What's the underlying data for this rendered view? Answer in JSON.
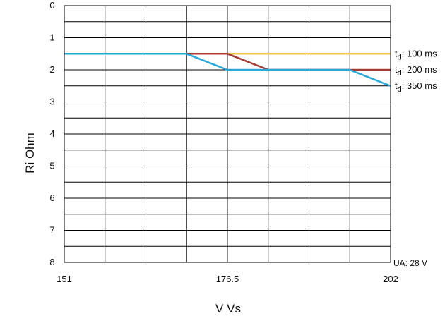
{
  "chart_data": {
    "type": "line",
    "xlabel": "V Vs",
    "ylabel": "Ri Ohm",
    "xlim": [
      151,
      202
    ],
    "ylim": [
      0,
      8
    ],
    "y_inverted": true,
    "grid": true,
    "x_ticks": [
      "151",
      "176.5",
      "202"
    ],
    "y_ticks": [
      "0",
      "1",
      "2",
      "3",
      "4",
      "5",
      "6",
      "7",
      "8"
    ],
    "series": [
      {
        "name_prefix": "t",
        "name_sub": "d",
        "name_suffix": ": 100 ms",
        "color": "#f2c74a",
        "points": [
          [
            151,
            1.5
          ],
          [
            202,
            1.5
          ]
        ]
      },
      {
        "name_prefix": "t",
        "name_sub": "d",
        "name_suffix": ": 200 ms",
        "color": "#a33c32",
        "points": [
          [
            151,
            1.5
          ],
          [
            170.1,
            1.5
          ],
          [
            176.5,
            1.5
          ],
          [
            182.9,
            2.0
          ],
          [
            202,
            2.0
          ]
        ]
      },
      {
        "name_prefix": "t",
        "name_sub": "d",
        "name_suffix": ": 350 ms",
        "color": "#2ba8d8",
        "points": [
          [
            151,
            1.5
          ],
          [
            170.1,
            1.5
          ],
          [
            176.5,
            2.0
          ],
          [
            195.6,
            2.0
          ],
          [
            202,
            2.5
          ]
        ]
      }
    ],
    "annotation": "UA: 28 V"
  }
}
